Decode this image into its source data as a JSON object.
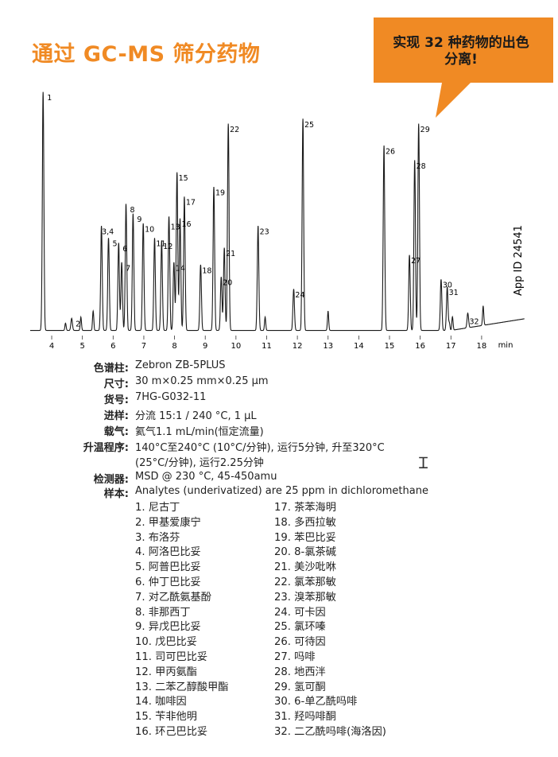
{
  "title": "通过 GC-MS 筛分药物",
  "callout": "实现 32 种药物的出色分离!",
  "callout_lines": [
    "实现 32 种药物的出色",
    "分离!"
  ],
  "colors": {
    "accent": "#f08a24",
    "trace": "#1a1a1a"
  },
  "app_id": "App ID 24541",
  "chart_data": {
    "type": "line",
    "xlabel": "min",
    "xlim": [
      3.3,
      19.4
    ],
    "x_ticks": [
      4,
      5,
      6,
      7,
      8,
      9,
      10,
      11,
      12,
      13,
      14,
      15,
      16,
      17,
      18
    ],
    "ylim": [
      0,
      100
    ],
    "grid": false,
    "peaks": [
      {
        "label": "1",
        "x": 3.72,
        "y": 98
      },
      {
        "label": "2",
        "x": 4.65,
        "y": 5
      },
      {
        "label": "3,4",
        "x": 5.62,
        "y": 43
      },
      {
        "label": "5",
        "x": 5.85,
        "y": 38
      },
      {
        "label": "6",
        "x": 6.18,
        "y": 36
      },
      {
        "label": "7",
        "x": 6.28,
        "y": 28
      },
      {
        "label": "8",
        "x": 6.42,
        "y": 52
      },
      {
        "label": "9",
        "x": 6.65,
        "y": 48
      },
      {
        "label": "10",
        "x": 6.98,
        "y": 44
      },
      {
        "label": "11",
        "x": 7.35,
        "y": 38
      },
      {
        "label": "12",
        "x": 7.58,
        "y": 37
      },
      {
        "label": "13",
        "x": 7.82,
        "y": 45
      },
      {
        "label": "14",
        "x": 7.98,
        "y": 28
      },
      {
        "label": "15",
        "x": 8.08,
        "y": 65
      },
      {
        "label": "16",
        "x": 8.18,
        "y": 46
      },
      {
        "label": "17",
        "x": 8.32,
        "y": 55
      },
      {
        "label": "18",
        "x": 8.85,
        "y": 27
      },
      {
        "label": "19",
        "x": 9.28,
        "y": 59
      },
      {
        "label": "20",
        "x": 9.52,
        "y": 22
      },
      {
        "label": "21",
        "x": 9.62,
        "y": 34
      },
      {
        "label": "22",
        "x": 9.75,
        "y": 85
      },
      {
        "label": "23",
        "x": 10.72,
        "y": 43
      },
      {
        "label": "24",
        "x": 11.88,
        "y": 17
      },
      {
        "label": "25",
        "x": 12.18,
        "y": 87
      },
      {
        "label": "26",
        "x": 14.82,
        "y": 76
      },
      {
        "label": "27",
        "x": 15.65,
        "y": 31
      },
      {
        "label": "28",
        "x": 15.82,
        "y": 70
      },
      {
        "label": "29",
        "x": 15.95,
        "y": 85
      },
      {
        "label": "30",
        "x": 16.68,
        "y": 21
      },
      {
        "label": "31",
        "x": 16.88,
        "y": 18
      },
      {
        "label": "32",
        "x": 17.55,
        "y": 6
      }
    ]
  },
  "info": {
    "column_label": "色谱柱:",
    "column_value": "Zebron ZB-5PLUS",
    "dims_label": "尺寸:",
    "dims_value": "30 m×0.25 mm×0.25 µm",
    "part_label": "货号:",
    "part_value": "7HG-G032-11",
    "inj_label": "进样:",
    "inj_value": "分流 15:1 / 240 °C, 1 µL",
    "carrier_label": "载气:",
    "carrier_value": "氦气1.1 mL/min(恒定流量)",
    "oven_label": "升温程序:",
    "oven_value_1": "140°C至240°C (10°C/分钟), 运行5分钟, 升至320°C",
    "oven_value_2": "(25°C/分钟), 运行2.25分钟",
    "detector_label": "检测器:",
    "detector_value": "MSD @ 230 °C, 45-450amu",
    "sample_label": "样本:",
    "sample_value": "Analytes (underivatized) are 25 ppm in dichloromethane"
  },
  "compounds_left": [
    "1. 尼古丁",
    "2. 甲基爱康宁",
    "3. 布洛芬",
    "4. 阿洛巴比妥",
    "5. 阿普巴比妥",
    "6. 仲丁巴比妥",
    "7. 对乙酰氨基酚",
    "8. 非那西丁",
    "9. 异戊巴比妥",
    "10. 戊巴比妥",
    "11. 司可巴比妥",
    "12. 甲丙氨酯",
    "13. 二苯乙醇酸甲酯",
    "14. 咖啡因",
    "15. 苄非他明",
    "16. 环己巴比妥"
  ],
  "compounds_right": [
    "17. 茶苯海明",
    "18. 多西拉敏",
    "19. 苯巴比妥",
    "20. 8-氯茶碱",
    "21. 美沙吡咻",
    "22. 氯苯那敏",
    "23. 溴苯那敏",
    "24. 可卡因",
    "25. 氯环嗪",
    "26. 可待因",
    "27. 吗啡",
    "28. 地西泮",
    "29. 氢可酮",
    "30. 6-单乙酰吗啡",
    "31. 羟吗啡酮",
    "32. 二乙酰吗啡(海洛因)"
  ]
}
